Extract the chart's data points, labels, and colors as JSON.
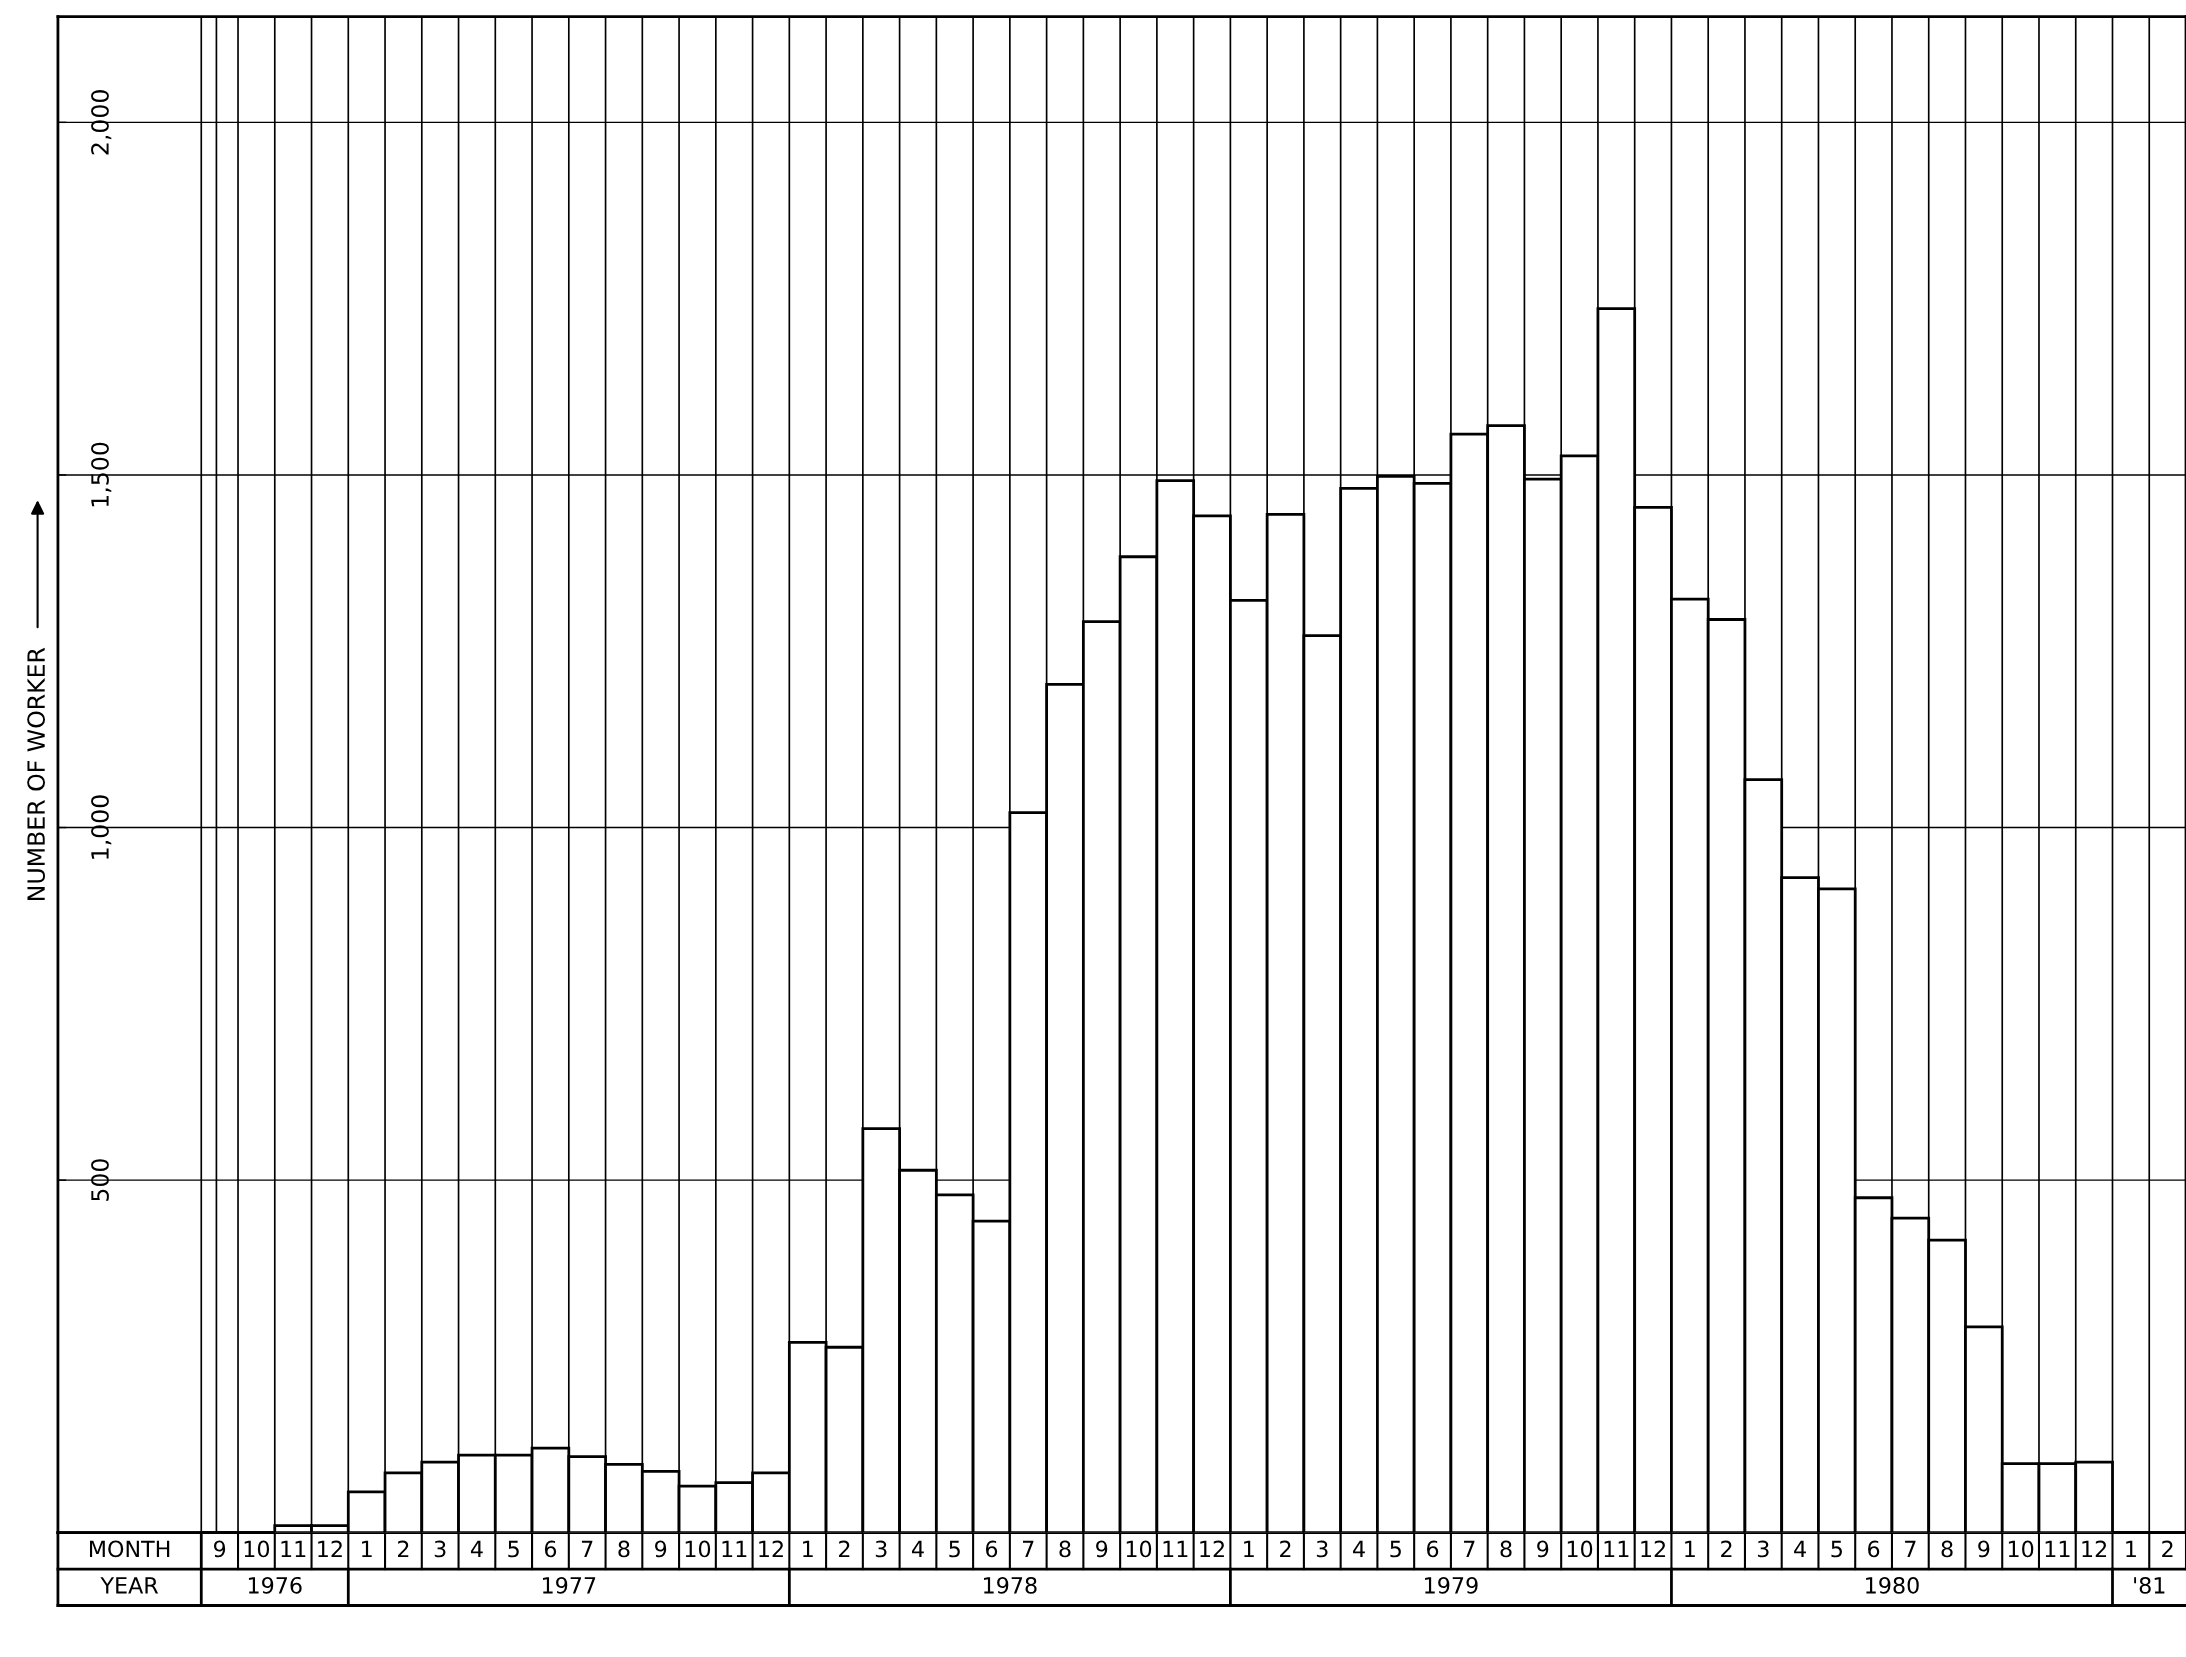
{
  "chart_data": {
    "type": "bar",
    "ylabel": "NUMBER OF WORKER",
    "categories": [
      "9",
      "10",
      "11",
      "12",
      "1",
      "2",
      "3",
      "4",
      "5",
      "6",
      "7",
      "8",
      "9",
      "10",
      "11",
      "12",
      "1",
      "2",
      "3",
      "4",
      "5",
      "6",
      "7",
      "8",
      "9",
      "10",
      "11",
      "12",
      "1",
      "2",
      "3",
      "4",
      "5",
      "6",
      "7",
      "8",
      "9",
      "10",
      "11",
      "12",
      "1",
      "2",
      "3",
      "4",
      "5",
      "6",
      "7",
      "8",
      "9",
      "10",
      "11",
      "12",
      "1",
      "2"
    ],
    "values": [
      0,
      0,
      10,
      10,
      58,
      85,
      100,
      110,
      110,
      120,
      108,
      97,
      87,
      66,
      71,
      85,
      270,
      263,
      573,
      514,
      479,
      442,
      1021,
      1203,
      1292,
      1384,
      1492,
      1442,
      1322,
      1444,
      1272,
      1481,
      1498,
      1488,
      1558,
      1570,
      1494,
      1527,
      1736,
      1454,
      1324,
      1295,
      1068,
      929,
      913,
      475,
      446,
      415,
      292,
      98,
      98,
      100,
      0,
      0
    ],
    "color": "#ffffff",
    "ylim": [
      0,
      2150
    ],
    "yticks": [
      {
        "value": 500,
        "label": "500"
      },
      {
        "value": 1000,
        "label": "1,000"
      },
      {
        "value": 1500,
        "label": "1,500"
      },
      {
        "value": 2000,
        "label": "2,000"
      }
    ],
    "grid": true,
    "annotations": [
      "MONTH",
      "YEAR",
      "1976",
      "1977",
      "1978",
      "1979",
      "1980",
      "'81"
    ]
  }
}
